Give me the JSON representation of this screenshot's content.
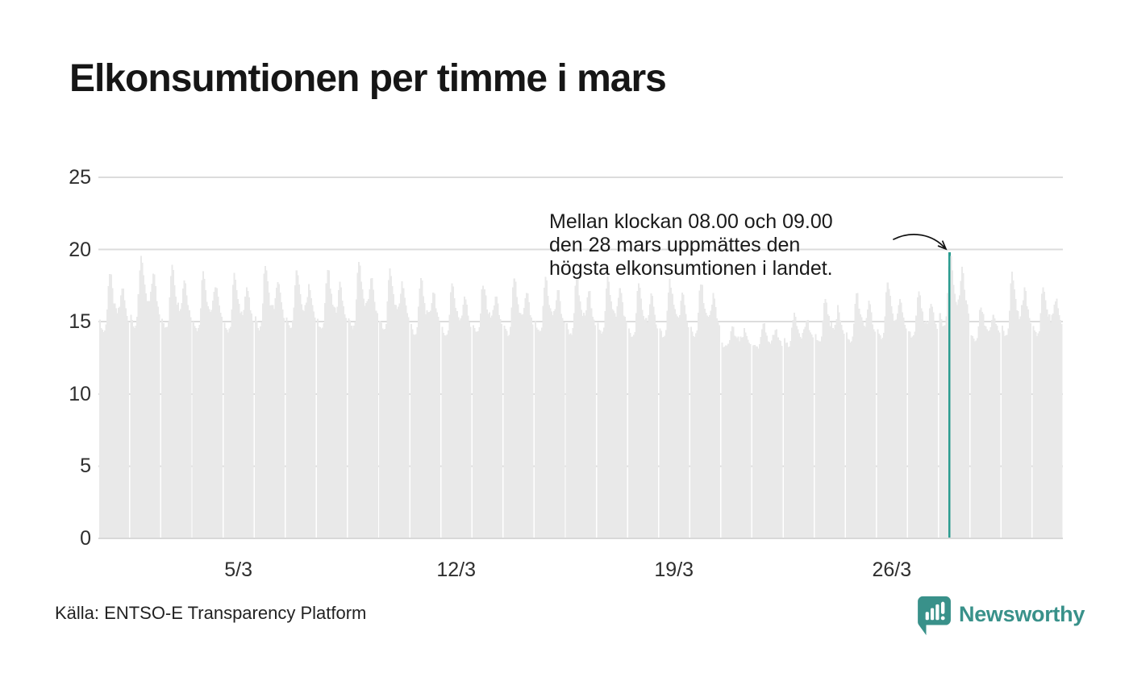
{
  "title": "Elkonsumtionen per timme i mars",
  "annotation": {
    "lines": [
      "Mellan klockan 08.00 och 09.00",
      "den 28 mars uppmättes den",
      "högsta elkonsumtionen i landet."
    ]
  },
  "footer": {
    "source": "Källa: ENTSO-E Transparency Platform",
    "brand": "Newsworthy"
  },
  "colors": {
    "bar": "#e9e9e9",
    "grid": "#dcdcdc",
    "baseline": "#d8d8d8",
    "highlight": "#2b9c90",
    "brand_teal": "#39918a",
    "text": "#1a1a1a",
    "axis_text": "#2e2e2e"
  },
  "chart_data": {
    "type": "bar",
    "title": "Elkonsumtionen per timme i mars",
    "xlabel": "",
    "ylabel": "",
    "ylim": [
      0,
      25
    ],
    "grid": "horizontal",
    "y_ticks": [
      0,
      5,
      10,
      15,
      20,
      25
    ],
    "x_tick_labels": [
      "5/3",
      "12/3",
      "19/3",
      "26/3"
    ],
    "x_tick_days": [
      5,
      12,
      19,
      26
    ],
    "days_in_month": 31,
    "series_note": "Hourly electricity consumption for each day of March; each day drawn as 24 contiguous hourly bars, values derived as min + (max-min) * hour_profile[h]",
    "hour_profile": [
      0.2,
      0.12,
      0.06,
      0.03,
      0.05,
      0.14,
      0.45,
      0.82,
      1.0,
      0.93,
      0.72,
      0.55,
      0.44,
      0.38,
      0.35,
      0.37,
      0.46,
      0.62,
      0.78,
      0.72,
      0.55,
      0.4,
      0.3,
      0.22
    ],
    "days": [
      {
        "d": 1,
        "min": 14.2,
        "max": 18.3
      },
      {
        "d": 2,
        "min": 14.5,
        "max": 19.6
      },
      {
        "d": 3,
        "min": 14.4,
        "max": 19.0
      },
      {
        "d": 4,
        "min": 14.3,
        "max": 18.5
      },
      {
        "d": 5,
        "min": 14.2,
        "max": 18.3
      },
      {
        "d": 6,
        "min": 14.4,
        "max": 18.9
      },
      {
        "d": 7,
        "min": 14.4,
        "max": 18.5
      },
      {
        "d": 8,
        "min": 14.3,
        "max": 18.6
      },
      {
        "d": 9,
        "min": 14.4,
        "max": 19.2
      },
      {
        "d": 10,
        "min": 14.3,
        "max": 18.7
      },
      {
        "d": 11,
        "min": 14.0,
        "max": 18.0
      },
      {
        "d": 12,
        "min": 13.9,
        "max": 17.7
      },
      {
        "d": 13,
        "min": 14.1,
        "max": 17.6
      },
      {
        "d": 14,
        "min": 14.0,
        "max": 17.9
      },
      {
        "d": 15,
        "min": 14.1,
        "max": 18.1
      },
      {
        "d": 16,
        "min": 14.0,
        "max": 18.0
      },
      {
        "d": 17,
        "min": 14.0,
        "max": 18.2
      },
      {
        "d": 18,
        "min": 13.8,
        "max": 17.6
      },
      {
        "d": 19,
        "min": 13.8,
        "max": 17.9
      },
      {
        "d": 20,
        "min": 13.9,
        "max": 17.6
      },
      {
        "d": 21,
        "min": 13.2,
        "max": 14.6
      },
      {
        "d": 22,
        "min": 13.1,
        "max": 14.8
      },
      {
        "d": 23,
        "min": 13.3,
        "max": 15.6
      },
      {
        "d": 24,
        "min": 13.5,
        "max": 16.6
      },
      {
        "d": 25,
        "min": 13.5,
        "max": 17.0
      },
      {
        "d": 26,
        "min": 13.7,
        "max": 17.7
      },
      {
        "d": 27,
        "min": 13.8,
        "max": 17.0
      },
      {
        "d": 28,
        "min": 14.5,
        "max": 19.8
      },
      {
        "d": 29,
        "min": 13.6,
        "max": 16.0
      },
      {
        "d": 30,
        "min": 13.8,
        "max": 18.4
      },
      {
        "d": 31,
        "min": 14.0,
        "max": 17.4
      }
    ],
    "highlight": {
      "day": 28,
      "hour": 8,
      "value": 19.8,
      "label_time": "08.00–09.00",
      "label_date": "28 mars"
    }
  }
}
